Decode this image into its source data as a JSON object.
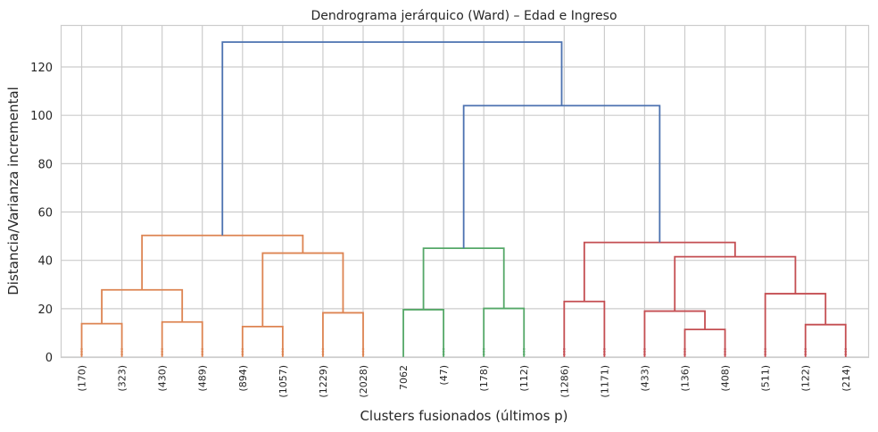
{
  "chart_data": {
    "type": "dendrogram",
    "title": "Dendrograma jerárquico (Ward) – Edad e Ingreso",
    "xlabel": "Clusters fusionados (últimos p)",
    "ylabel": "Distancia/Varianza incremental",
    "ylim": [
      0,
      137
    ],
    "yticks": [
      0,
      20,
      40,
      60,
      80,
      100,
      120
    ],
    "grid": true,
    "leaves": [
      "(170)",
      "(323)",
      "(430)",
      "(489)",
      "(894)",
      "(1057)",
      "(1229)",
      "(2028)",
      "7062",
      "(47)",
      "(178)",
      "(112)",
      "(1286)",
      "(1171)",
      "(433)",
      "(136)",
      "(408)",
      "(511)",
      "(122)",
      "(214)"
    ],
    "colors": {
      "orange": "#dd8452",
      "green": "#55a868",
      "red": "#c44e52",
      "blue": "#4c72b0"
    },
    "merges": [
      {
        "a": 0,
        "b": 1,
        "height": 13.8,
        "color": "orange"
      },
      {
        "a": 2,
        "b": 3,
        "height": 14.5,
        "color": "orange"
      },
      {
        "a": 20,
        "b": 21,
        "height": 27.8,
        "color": "orange"
      },
      {
        "a": 4,
        "b": 5,
        "height": 12.6,
        "color": "orange"
      },
      {
        "a": 6,
        "b": 7,
        "height": 18.3,
        "color": "orange"
      },
      {
        "a": 23,
        "b": 24,
        "height": 43.0,
        "color": "orange"
      },
      {
        "a": 22,
        "b": 25,
        "height": 50.3,
        "color": "orange"
      },
      {
        "a": 8,
        "b": 9,
        "height": 19.6,
        "color": "green"
      },
      {
        "a": 10,
        "b": 11,
        "height": 20.1,
        "color": "green"
      },
      {
        "a": 27,
        "b": 28,
        "height": 45.0,
        "color": "green"
      },
      {
        "a": 12,
        "b": 13,
        "height": 23.0,
        "color": "red"
      },
      {
        "a": 15,
        "b": 16,
        "height": 11.4,
        "color": "red"
      },
      {
        "a": 14,
        "b": 31,
        "height": 19.0,
        "color": "red"
      },
      {
        "a": 18,
        "b": 19,
        "height": 13.4,
        "color": "red"
      },
      {
        "a": 17,
        "b": 33,
        "height": 26.2,
        "color": "red"
      },
      {
        "a": 32,
        "b": 34,
        "height": 41.5,
        "color": "red"
      },
      {
        "a": 30,
        "b": 35,
        "height": 47.4,
        "color": "red"
      },
      {
        "a": 29,
        "b": 36,
        "height": 104.0,
        "color": "blue"
      },
      {
        "a": 26,
        "b": 37,
        "height": 130.3,
        "color": "blue"
      }
    ]
  }
}
